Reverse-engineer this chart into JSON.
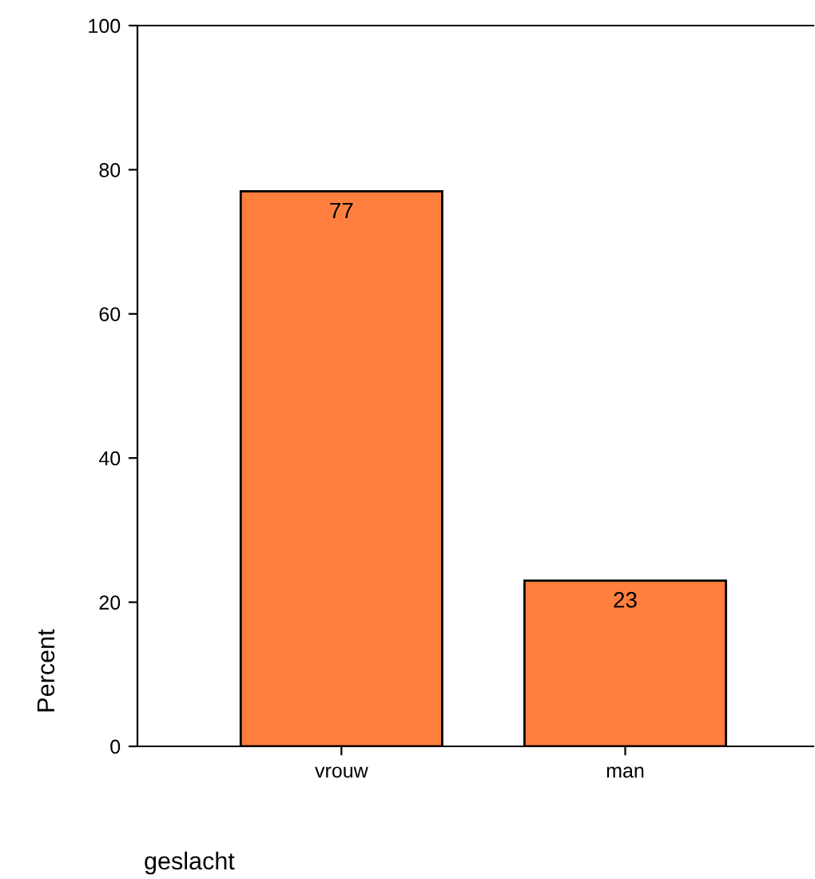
{
  "chart_data": {
    "type": "bar",
    "xlabel": "geslacht",
    "ylabel": "Percent",
    "categories": [
      "vrouw",
      "man"
    ],
    "values": [
      77,
      23
    ],
    "color": "#ff7f3f",
    "ylim": [
      0,
      100
    ],
    "yticks": [
      0,
      20,
      40,
      60,
      80,
      100
    ],
    "grid": false,
    "data_labels": true
  }
}
